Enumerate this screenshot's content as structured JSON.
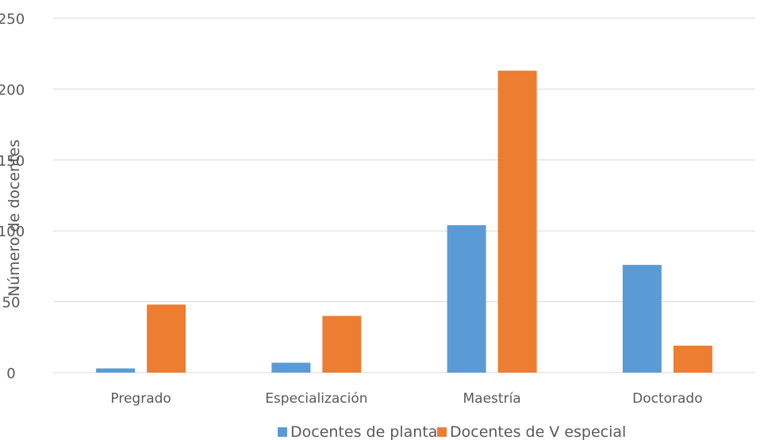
{
  "chart_data": {
    "type": "bar",
    "title": "",
    "xlabel": "",
    "ylabel": "Número de docentes",
    "categories": [
      "Pregrado",
      "Especialización",
      "Maestría",
      "Doctorado"
    ],
    "series": [
      {
        "name": "Docentes de planta",
        "color": "#5b9bd5",
        "values": [
          3,
          7,
          104,
          76
        ]
      },
      {
        "name": "Docentes de V especial",
        "color": "#ed7d31",
        "values": [
          48,
          40,
          213,
          19
        ]
      }
    ],
    "ylim": [
      0,
      250
    ],
    "yticks": [
      0,
      50,
      100,
      150,
      200,
      250
    ],
    "grid": true,
    "legend_position": "bottom"
  }
}
